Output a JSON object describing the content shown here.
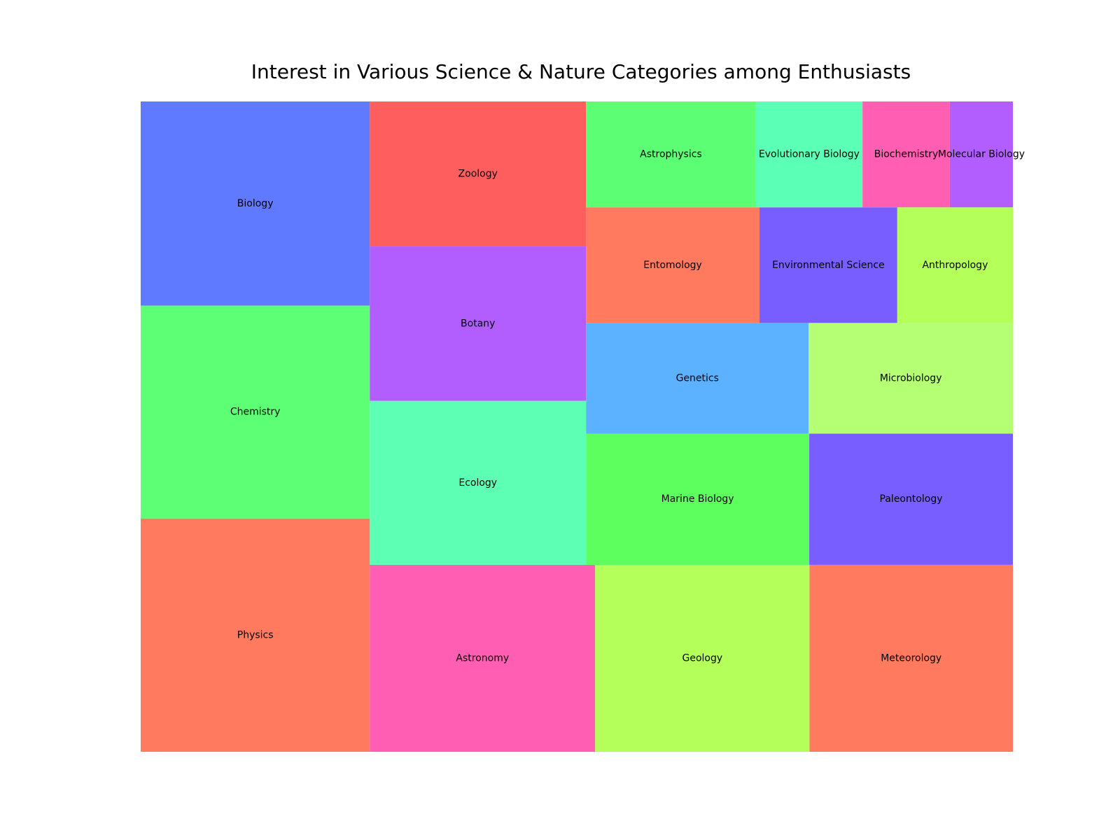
{
  "chart_data": {
    "type": "treemap",
    "title": "Interest in Various Science & Nature Categories among Enthusiasts",
    "items": [
      {
        "label": "Biology",
        "value": 91,
        "color": "#5F79FF"
      },
      {
        "label": "Chemistry",
        "value": 95,
        "color": "#5DFF74"
      },
      {
        "label": "Physics",
        "value": 104,
        "color": "#FF7A5E"
      },
      {
        "label": "Zoology",
        "value": 61,
        "color": "#FF5E5E"
      },
      {
        "label": "Botany",
        "value": 65,
        "color": "#B25EFF"
      },
      {
        "label": "Ecology",
        "value": 69,
        "color": "#5DFFB5"
      },
      {
        "label": "Astronomy",
        "value": 82,
        "color": "#FF5EB3"
      },
      {
        "label": "Geology",
        "value": 78,
        "color": "#B4FF5A"
      },
      {
        "label": "Meteorology",
        "value": 74,
        "color": "#FF7A5E"
      },
      {
        "label": "Astrophysics",
        "value": 35,
        "color": "#5CFF74"
      },
      {
        "label": "Entomology",
        "value": 39,
        "color": "#FF7A5E"
      },
      {
        "label": "Evolutionary Biology",
        "value": 22,
        "color": "#5BFFB5"
      },
      {
        "label": "Biochemistry",
        "value": 18,
        "color": "#FF5EB3"
      },
      {
        "label": "Molecular Biology",
        "value": 13,
        "color": "#B25EFF"
      },
      {
        "label": "Environmental Science",
        "value": 31,
        "color": "#795EFF"
      },
      {
        "label": "Anthropology",
        "value": 26,
        "color": "#B4FF5A"
      },
      {
        "label": "Genetics",
        "value": 48,
        "color": "#5CB2FF"
      },
      {
        "label": "Microbiology",
        "value": 44,
        "color": "#B4FF74"
      },
      {
        "label": "Marine Biology",
        "value": 57,
        "color": "#5DFF5E"
      },
      {
        "label": "Paleontology",
        "value": 52,
        "color": "#795EFF"
      }
    ]
  }
}
